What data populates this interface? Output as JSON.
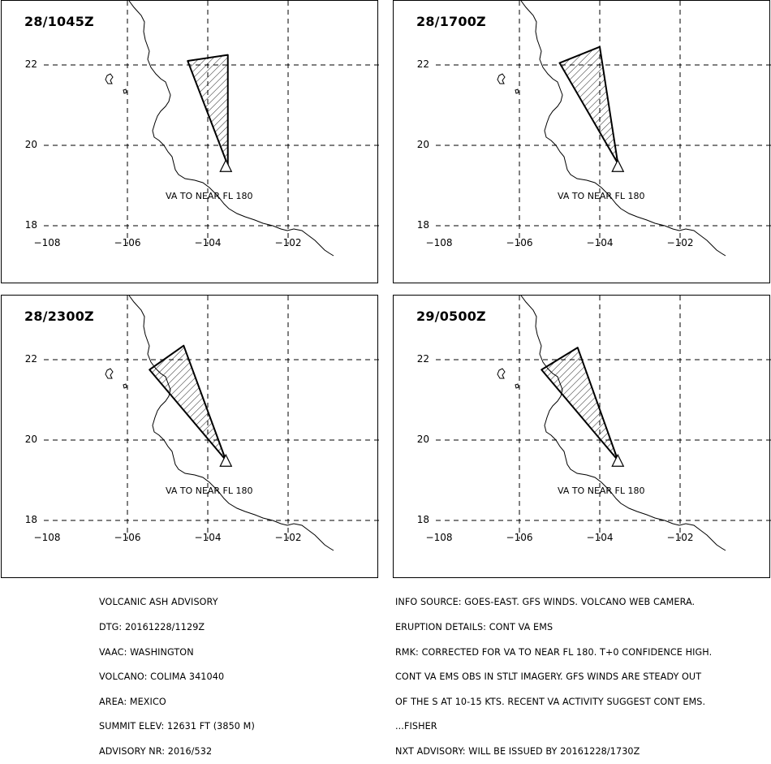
{
  "panels": [
    {
      "title": "28/1045Z",
      "label": "VA TO NEAR FL 180",
      "polygon": [
        [
          -104.5,
          22.1
        ],
        [
          -103.5,
          22.25
        ],
        [
          -103.5,
          19.5
        ]
      ]
    },
    {
      "title": "28/1700Z",
      "label": "VA TO NEAR FL 180",
      "polygon": [
        [
          -105.0,
          22.05
        ],
        [
          -104.0,
          22.45
        ],
        [
          -103.55,
          19.55
        ]
      ]
    },
    {
      "title": "28/2300Z",
      "label": "VA TO NEAR FL 180",
      "polygon": [
        [
          -105.45,
          21.75
        ],
        [
          -104.6,
          22.35
        ],
        [
          -103.55,
          19.5
        ]
      ]
    },
    {
      "title": "29/0500Z",
      "label": "VA TO NEAR FL 180",
      "polygon": [
        [
          -105.45,
          21.75
        ],
        [
          -104.55,
          22.3
        ],
        [
          -103.55,
          19.5
        ]
      ]
    }
  ],
  "axes": {
    "lon_ticks": [
      "−108",
      "−106",
      "−104",
      "−102"
    ],
    "lat_ticks": [
      "22",
      "20",
      "18"
    ]
  },
  "volcano": "triangle-volcano-symbol",
  "advisory_left": [
    "VOLCANIC ASH ADVISORY",
    "DTG: 20161228/1129Z",
    "VAAC: WASHINGTON",
    "VOLCANO: COLIMA 341040",
    "AREA: MEXICO",
    "SUMMIT ELEV: 12631 FT (3850 M)",
    "ADVISORY NR: 2016/532"
  ],
  "advisory_right": [
    "INFO SOURCE: GOES-EAST. GFS WINDS. VOLCANO WEB CAMERA.",
    "ERUPTION DETAILS: CONT VA EMS",
    "RMK: CORRECTED FOR VA TO NEAR FL 180. T+0 CONFIDENCE HIGH.",
    "CONT VA EMS OBS IN STLT IMAGERY. GFS WINDS ARE STEADY OUT",
    "OF THE S AT 10-15 KTS. RECENT VA ACTIVITY SUGGEST CONT EMS.",
    "...FISHER",
    "NXT ADVISORY: WILL BE ISSUED BY 20161228/1730Z"
  ]
}
